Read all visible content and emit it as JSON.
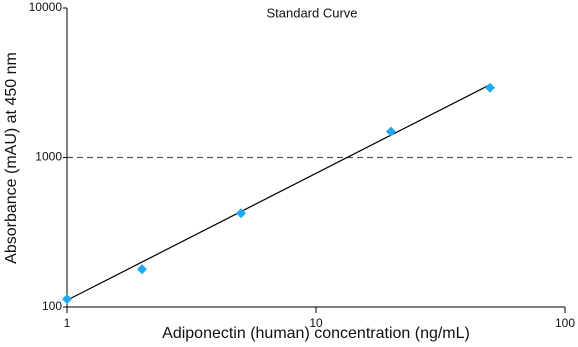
{
  "chart_data": {
    "type": "scatter",
    "title": "Standard Curve",
    "x_label": "Adiponectin (human) concentration (ng/mL)",
    "y_label": "Absorbance (mAU) at 450 nm",
    "x": [
      1,
      2,
      5,
      20,
      50
    ],
    "values": [
      113,
      179,
      424,
      1490,
      2930
    ],
    "color": "#1eaaf1",
    "fit": {
      "x": [
        1,
        50
      ],
      "values": [
        111,
        3070
      ],
      "color": "#000000"
    },
    "reference_line": {
      "value": 1000,
      "color": "#555555"
    },
    "xscale": "log",
    "yscale": "log",
    "xlim": [
      1,
      100
    ],
    "ylim": [
      100,
      10000
    ],
    "xticks": [
      1,
      10,
      100
    ],
    "yticks": [
      100,
      1000,
      10000
    ]
  }
}
